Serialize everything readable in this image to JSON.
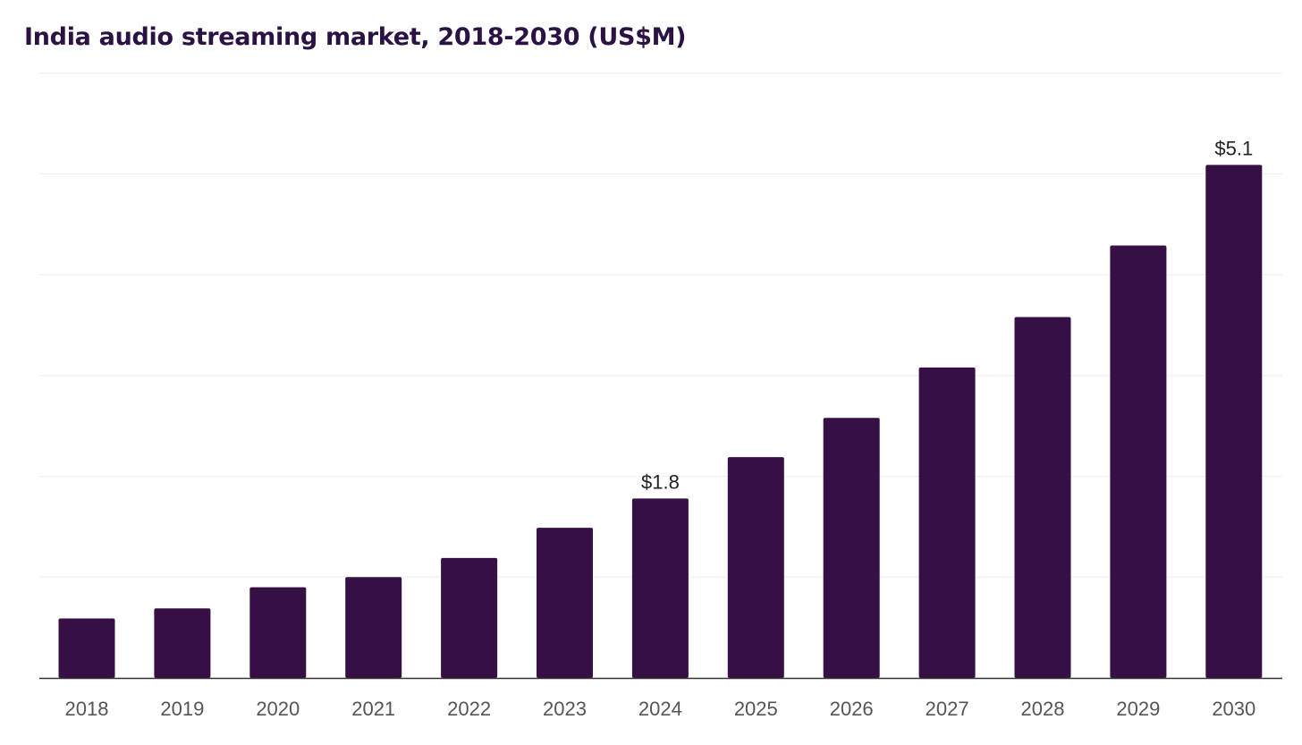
{
  "chart_title": "India audio streaming market, 2018-2030 (US$M)",
  "colors": {
    "bar": "#361045",
    "title": "#2a1245",
    "grid": "#eeeeee",
    "axis": "#333333"
  },
  "chart_data": {
    "type": "bar",
    "title": "India audio streaming market, 2018-2030 (US$M)",
    "xlabel": "",
    "ylabel": "",
    "categories": [
      "2018",
      "2019",
      "2020",
      "2021",
      "2022",
      "2023",
      "2024",
      "2025",
      "2026",
      "2027",
      "2028",
      "2029",
      "2030"
    ],
    "values": [
      0.59,
      0.69,
      0.9,
      1.0,
      1.19,
      1.49,
      1.78,
      2.19,
      2.58,
      3.08,
      3.58,
      4.29,
      5.09
    ],
    "value_labels": [
      "",
      "",
      "",
      "",
      "",
      "",
      "$1.8",
      "",
      "",
      "",
      "",
      "",
      "$5.1"
    ],
    "ylim": [
      0,
      6
    ],
    "y_gridlines": [
      1,
      2,
      3,
      4,
      5,
      6
    ],
    "y_tick_labels_shown": false,
    "grid": true,
    "legend": "none"
  }
}
